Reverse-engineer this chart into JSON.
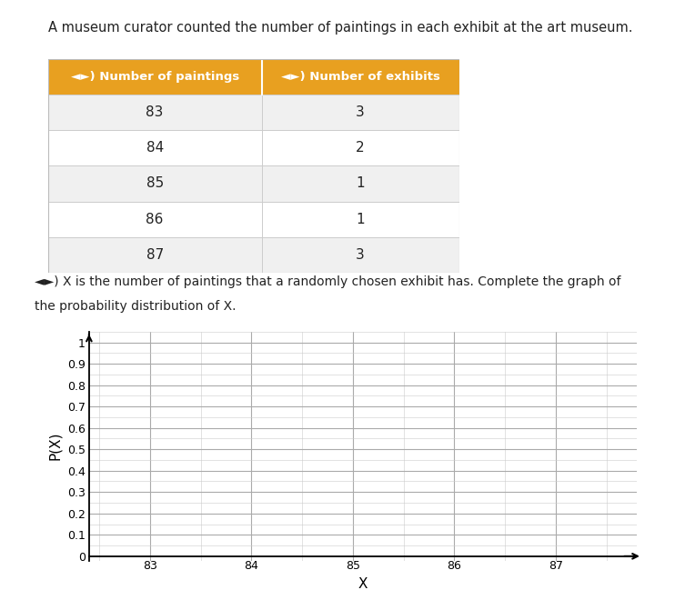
{
  "title": "A museum curator counted the number of paintings in each exhibit at the art museum.",
  "table_col1": "◄►) Number of paintings",
  "table_col2": "◄►) Number of exhibits",
  "paintings": [
    83,
    84,
    85,
    86,
    87
  ],
  "exhibits": [
    3,
    2,
    1,
    1,
    3
  ],
  "xlabel": "X",
  "ylabel": "P(X)",
  "yticks": [
    0,
    0.1,
    0.2,
    0.3,
    0.4,
    0.5,
    0.6,
    0.7,
    0.8,
    0.9,
    1.0
  ],
  "xticks": [
    83,
    84,
    85,
    86,
    87
  ],
  "header_color": "#E8A020",
  "header_text_color": "#FFFFFF",
  "row_color_odd": "#F0F0F0",
  "row_color_even": "#FFFFFF",
  "grid_major_color": "#AAAAAA",
  "grid_minor_color": "#CCCCCC",
  "figure_bg": "#FFFFFF",
  "text_color": "#222222",
  "desc_icon": "◄►)"
}
